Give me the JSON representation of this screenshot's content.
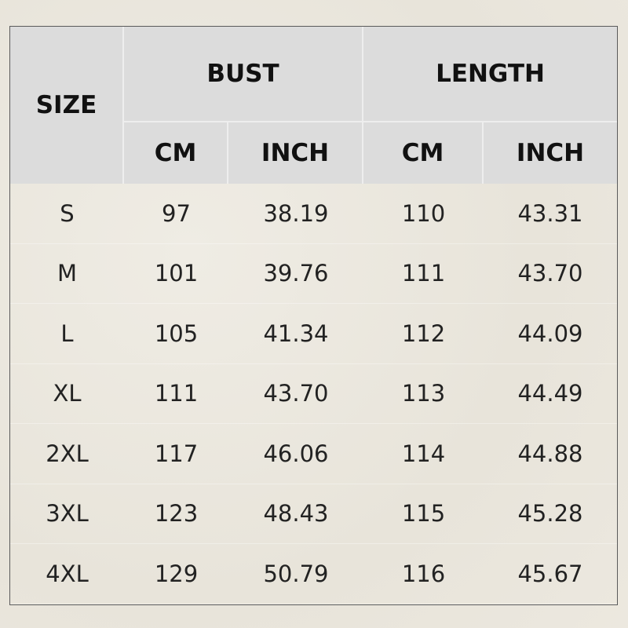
{
  "header": {
    "size": "SIZE",
    "bust": "BUST",
    "length": "LENGTH",
    "subcols": [
      "CM",
      "INCH",
      "CM",
      "INCH"
    ]
  },
  "colors": {
    "header_bg": "#dcdcdc",
    "body_bg": "#ebe7de",
    "border": "#5a5a5a"
  },
  "rows": [
    [
      "S",
      "97",
      "38.19",
      "110",
      "43.31"
    ],
    [
      "M",
      "101",
      "39.76",
      "111",
      "43.70"
    ],
    [
      "L",
      "105",
      "41.34",
      "112",
      "44.09"
    ],
    [
      "XL",
      "111",
      "43.70",
      "113",
      "44.49"
    ],
    [
      "2XL",
      "117",
      "46.06",
      "114",
      "44.88"
    ],
    [
      "3XL",
      "123",
      "48.43",
      "115",
      "45.28"
    ],
    [
      "4XL",
      "129",
      "50.79",
      "116",
      "45.67"
    ]
  ]
}
